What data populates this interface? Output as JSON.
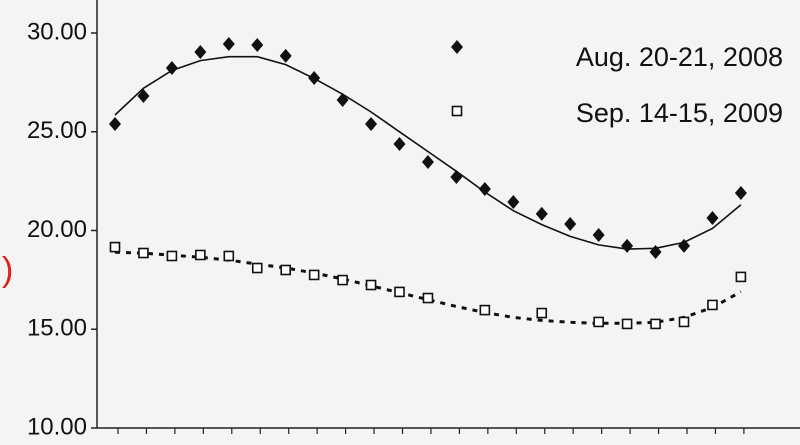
{
  "chart_data": {
    "type": "scatter",
    "annotation": ")",
    "categories": [
      null,
      null,
      null,
      null,
      null,
      null,
      null,
      null,
      null,
      null,
      null,
      null,
      null,
      null,
      null,
      null,
      null,
      null,
      null,
      null,
      null,
      null,
      null
    ],
    "ylim": [
      10,
      30
    ],
    "yticks": [
      {
        "value": 10,
        "label": "10.00"
      },
      {
        "value": 15,
        "label": "15.00"
      },
      {
        "value": 20,
        "label": "20.00"
      },
      {
        "value": 25,
        "label": "25.00"
      },
      {
        "value": 30,
        "label": "30.00"
      }
    ],
    "legend": "upper right",
    "series": [
      {
        "name": "Aug. 20-21, 2008",
        "color": "#111111",
        "marker": "diamond",
        "values": [
          25.39,
          26.81,
          28.23,
          29.04,
          29.44,
          29.39,
          28.84,
          27.72,
          26.61,
          25.39,
          24.38,
          23.47,
          22.71,
          22.1,
          21.44,
          20.84,
          20.33,
          19.77,
          19.22,
          18.91,
          19.22,
          20.63,
          21.9
        ]
      },
      {
        "name": "Sep. 14-15, 2009",
        "color": "#111111",
        "marker": "square",
        "values": [
          19.16,
          18.86,
          18.71,
          18.76,
          18.71,
          18.1,
          18.0,
          17.75,
          17.49,
          17.24,
          16.89,
          16.58,
          null,
          15.97,
          null,
          15.82,
          null,
          15.37,
          15.27,
          15.27,
          15.37,
          16.23,
          17.65
        ]
      }
    ],
    "trendlines": [
      {
        "style": "solid",
        "color": "#111111",
        "values": [
          25.85,
          27.2,
          28.1,
          28.6,
          28.8,
          28.8,
          28.4,
          27.7,
          26.9,
          26.0,
          25.0,
          24.0,
          23.0,
          21.95,
          21.0,
          20.3,
          19.7,
          19.27,
          19.06,
          19.1,
          19.4,
          20.1,
          21.3
        ]
      },
      {
        "style": "dashed",
        "color": "#111111",
        "values": [
          18.9,
          18.85,
          18.75,
          18.65,
          18.5,
          18.3,
          18.1,
          17.85,
          17.55,
          17.2,
          16.85,
          16.5,
          16.15,
          15.85,
          15.6,
          15.45,
          15.35,
          15.3,
          15.3,
          15.35,
          15.6,
          16.1,
          16.9
        ]
      }
    ]
  }
}
